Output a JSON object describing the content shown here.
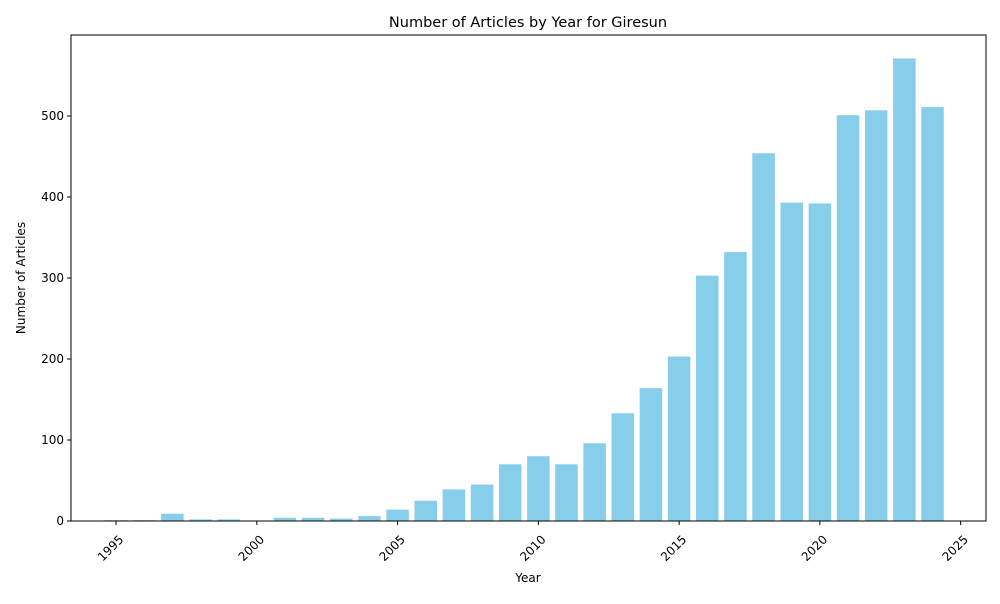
{
  "chart_data": {
    "type": "bar",
    "title": "Number of Articles by Year for Giresun",
    "xlabel": "Year",
    "ylabel": "Number of Articles",
    "bar_color": "#87ceeb",
    "x": [
      1995,
      1996,
      1997,
      1998,
      1999,
      2000,
      2001,
      2002,
      2003,
      2004,
      2005,
      2006,
      2007,
      2008,
      2009,
      2010,
      2011,
      2012,
      2013,
      2014,
      2015,
      2016,
      2017,
      2018,
      2019,
      2020,
      2021,
      2022,
      2023,
      2024
    ],
    "values": [
      1,
      1,
      9,
      2,
      2,
      0,
      4,
      4,
      3,
      6,
      14,
      25,
      39,
      45,
      70,
      80,
      70,
      96,
      133,
      164,
      203,
      303,
      332,
      454,
      393,
      392,
      501,
      507,
      571,
      511
    ],
    "xlim": [
      1993.4,
      2025.9
    ],
    "ylim": [
      0,
      600
    ],
    "x_ticks": [
      1995,
      2000,
      2005,
      2010,
      2015,
      2020,
      2025
    ],
    "y_ticks": [
      0,
      100,
      200,
      300,
      400,
      500
    ],
    "grid": false,
    "legend": "none"
  }
}
